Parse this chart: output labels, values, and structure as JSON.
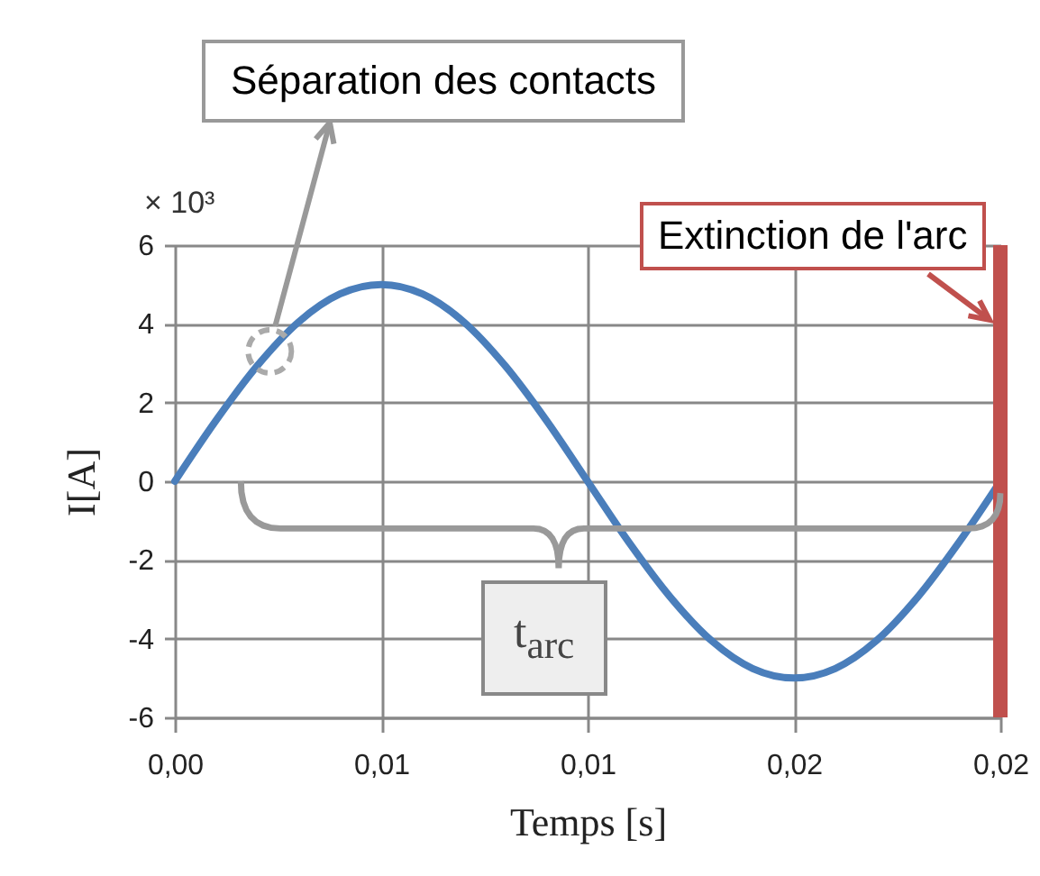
{
  "chart_data": {
    "type": "line",
    "xlabel": "Temps [s]",
    "ylabel": "I[A]",
    "x": [
      0,
      0.001,
      0.002,
      0.003,
      0.004,
      0.005,
      0.006,
      0.007,
      0.008,
      0.009,
      0.01,
      0.011,
      0.012,
      0.013,
      0.014,
      0.015,
      0.016,
      0.017,
      0.018,
      0.019,
      0.02
    ],
    "series": [
      {
        "color": "#4a7ebb",
        "values": [
          0,
          1.55,
          2.94,
          4.05,
          4.76,
          5,
          4.76,
          4.05,
          2.94,
          1.55,
          0,
          -1.55,
          -2.94,
          -4.05,
          -4.76,
          -5,
          -4.76,
          -4.05,
          -2.94,
          -1.55,
          0
        ]
      }
    ],
    "xlim": [
      0,
      0.02
    ],
    "ylim": [
      -6,
      6
    ],
    "xticks": [
      {
        "value": 0,
        "label": "0,00"
      },
      {
        "value": 0.005,
        "label": "0,01"
      },
      {
        "value": 0.01,
        "label": "0,01"
      },
      {
        "value": 0.015,
        "label": "0,02"
      },
      {
        "value": 0.02,
        "label": "0,02"
      }
    ],
    "yticks": [
      -6,
      -4,
      -2,
      0,
      2,
      4,
      6
    ],
    "grid": true,
    "ref_lines": [
      {
        "axis": "x",
        "value": 0.02,
        "label": "Extinction de l'arc",
        "color": "#c0504d"
      }
    ],
    "annotations": [
      "× 10³",
      "Séparation des contacts",
      "t$_{arc}$"
    ]
  }
}
